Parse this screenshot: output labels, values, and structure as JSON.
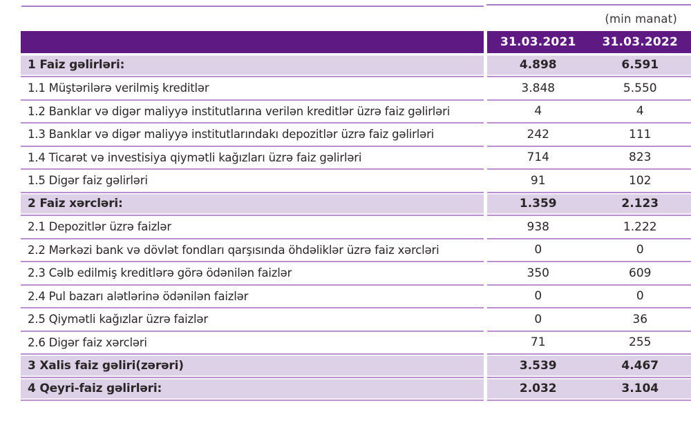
{
  "unit_label": "(min manat)",
  "header": {
    "columns": [
      "31.03.2021",
      "31.03.2022"
    ]
  },
  "colors": {
    "header_bg": "#5e1a82",
    "header_text": "#ffffff",
    "shaded_row_bg": "#dcd1e6",
    "row_line": "#b98fd0",
    "rule": "#a97ac6",
    "text": "#2a2627"
  },
  "rows": [
    {
      "label": "1 Faiz gəlirləri:",
      "v2021": "4.898",
      "v2022": "6.591",
      "emphasis": true
    },
    {
      "label": "1.1 Müştərilərə verilmiş kreditlər",
      "v2021": "3.848",
      "v2022": "5.550",
      "emphasis": false
    },
    {
      "label": "1.2 Banklar və digər maliyyə institutlarına verilən kreditlər üzrə faiz gəlirləri",
      "v2021": "4",
      "v2022": "4",
      "emphasis": false
    },
    {
      "label": "1.3 Banklar və digər maliyyə institutlarındakı depozitlər üzrə faiz gəlirləri",
      "v2021": "242",
      "v2022": "111",
      "emphasis": false
    },
    {
      "label": "1.4 Ticarət və investisiya qiymətli kağızları üzrə faiz gəlirləri",
      "v2021": "714",
      "v2022": "823",
      "emphasis": false
    },
    {
      "label": "1.5 Digər faiz gəlirləri",
      "v2021": "91",
      "v2022": "102",
      "emphasis": false
    },
    {
      "label": "2 Faiz xərcləri:",
      "v2021": "1.359",
      "v2022": "2.123",
      "emphasis": true
    },
    {
      "label": "2.1 Depozitlər üzrə faizlər",
      "v2021": "938",
      "v2022": "1.222",
      "emphasis": false
    },
    {
      "label": "2.2 Mərkəzi bank və dövlət fondları qarşısında öhdəliklər üzrə faiz xərcləri",
      "v2021": "0",
      "v2022": "0",
      "emphasis": false
    },
    {
      "label": "2.3 Cəlb edilmiş kreditlərə görə ödənilən faizlər",
      "v2021": "350",
      "v2022": "609",
      "emphasis": false
    },
    {
      "label": "2.4 Pul bazarı alətlərinə ödənilən faizlər",
      "v2021": "0",
      "v2022": "0",
      "emphasis": false
    },
    {
      "label": "2.5 Qiymətli kağızlar üzrə faizlər",
      "v2021": "0",
      "v2022": "36",
      "emphasis": false
    },
    {
      "label": "2.6 Digər faiz xərcləri",
      "v2021": "71",
      "v2022": "255",
      "emphasis": false
    },
    {
      "label": "3 Xalis faiz gəliri(zərəri)",
      "v2021": "3.539",
      "v2022": "4.467",
      "emphasis": true
    },
    {
      "label": "4 Qeyri-faiz gəlirləri:",
      "v2021": "2.032",
      "v2022": "3.104",
      "emphasis": true
    }
  ]
}
